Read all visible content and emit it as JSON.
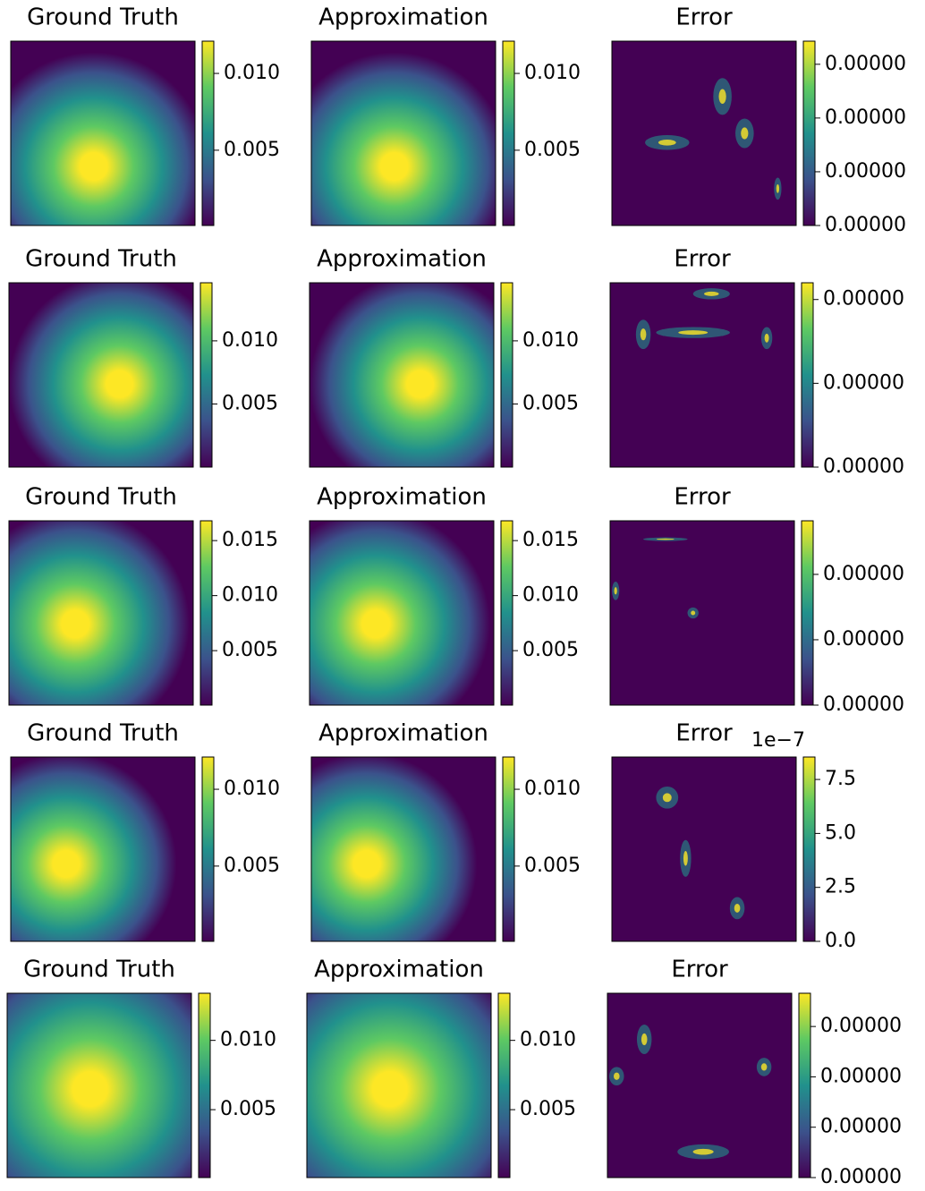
{
  "chart_data": [
    {
      "type": "heatmap",
      "title": "Ground Truth",
      "colormap": "viridis",
      "colorbar": {
        "clim": [
          0.0001,
          0.0121
        ],
        "ticks": [
          0.005,
          {
            "value": 0.01,
            "label": "0.010"
          }
        ]
      }
    },
    {
      "type": "heatmap",
      "title": "Approximation",
      "colormap": "viridis",
      "colorbar": {
        "clim": [
          0.0001,
          0.0121
        ],
        "ticks": [
          0.005,
          {
            "value": 0.01,
            "label": "0.010"
          }
        ]
      }
    },
    {
      "type": "heatmap",
      "title": "Error",
      "colormap": "viridis",
      "colorbar": {
        "clim": [
          0,
          3.43e-06
        ],
        "ticks": [
          {
            "value": 0,
            "label": "0.00000"
          },
          {
            "value": 1e-06,
            "label": "0.00000"
          },
          {
            "value": 2e-06,
            "label": "0.00000"
          },
          {
            "value": 3e-06,
            "label": "0.00000"
          }
        ]
      }
    },
    {
      "type": "heatmap",
      "title": "Ground Truth",
      "colormap": "viridis",
      "colorbar": {
        "clim": [
          0,
          0.0146
        ],
        "ticks": [
          0.005,
          {
            "value": 0.01,
            "label": "0.010"
          }
        ]
      }
    },
    {
      "type": "heatmap",
      "title": "Approximation",
      "colormap": "viridis",
      "colorbar": {
        "clim": [
          0,
          0.0146
        ],
        "ticks": [
          0.005,
          {
            "value": 0.01,
            "label": "0.010"
          }
        ]
      }
    },
    {
      "type": "heatmap",
      "title": "Error",
      "colormap": "viridis",
      "colorbar": {
        "clim": [
          0,
          2.2e-06
        ],
        "ticks": [
          {
            "value": 0,
            "label": "0.00000"
          },
          {
            "value": 1e-06,
            "label": "0.00000"
          },
          {
            "value": 2e-06,
            "label": "0.00000"
          }
        ]
      }
    },
    {
      "type": "heatmap",
      "title": "Ground Truth",
      "colormap": "viridis",
      "colorbar": {
        "clim": [
          5e-05,
          0.0168
        ],
        "ticks": [
          0.005,
          {
            "value": 0.01,
            "label": "0.010"
          },
          0.015
        ]
      }
    },
    {
      "type": "heatmap",
      "title": "Approximation",
      "colormap": "viridis",
      "colorbar": {
        "clim": [
          5e-05,
          0.0168
        ],
        "ticks": [
          0.005,
          {
            "value": 0.01,
            "label": "0.010"
          },
          0.015
        ]
      }
    },
    {
      "type": "heatmap",
      "title": "Error",
      "colormap": "viridis",
      "colorbar": {
        "clim": [
          0,
          2.82e-06
        ],
        "ticks": [
          {
            "value": 0,
            "label": "0.00000"
          },
          {
            "value": 1e-06,
            "label": "0.00000"
          },
          {
            "value": 2e-06,
            "label": "0.00000"
          }
        ]
      }
    },
    {
      "type": "heatmap",
      "title": "Ground Truth",
      "colormap": "viridis",
      "colorbar": {
        "clim": [
          0.0001,
          0.0121
        ],
        "ticks": [
          0.005,
          {
            "value": 0.01,
            "label": "0.010"
          }
        ]
      }
    },
    {
      "type": "heatmap",
      "title": "Approximation",
      "colormap": "viridis",
      "colorbar": {
        "clim": [
          0.0001,
          0.0121
        ],
        "ticks": [
          0.005,
          {
            "value": 0.01,
            "label": "0.010"
          }
        ]
      }
    },
    {
      "type": "heatmap",
      "title": "Error",
      "colormap": "viridis",
      "colorbar": {
        "clim": [
          0,
          8.54
        ],
        "offset_text": "1e−7",
        "ticks": [
          {
            "value": 0,
            "label": "0.0"
          },
          2.5,
          {
            "value": 5,
            "label": "5.0"
          },
          7.5
        ]
      }
    },
    {
      "type": "heatmap",
      "title": "Ground Truth",
      "colormap": "viridis",
      "colorbar": {
        "clim": [
          0.0001,
          0.0134
        ],
        "ticks": [
          0.005,
          {
            "value": 0.01,
            "label": "0.010"
          }
        ]
      }
    },
    {
      "type": "heatmap",
      "title": "Approximation",
      "colormap": "viridis",
      "colorbar": {
        "clim": [
          0.0001,
          0.0134
        ],
        "ticks": [
          0.005,
          {
            "value": 0.01,
            "label": "0.010"
          }
        ]
      }
    },
    {
      "type": "heatmap",
      "title": "Error",
      "colormap": "viridis",
      "colorbar": {
        "clim": [
          0,
          3.66e-06
        ],
        "ticks": [
          {
            "value": 0,
            "label": "0.00000"
          },
          {
            "value": 1e-06,
            "label": "0.00000"
          },
          {
            "value": 2e-06,
            "label": "0.00000"
          },
          {
            "value": 3e-06,
            "label": "0.00000"
          }
        ]
      }
    }
  ]
}
